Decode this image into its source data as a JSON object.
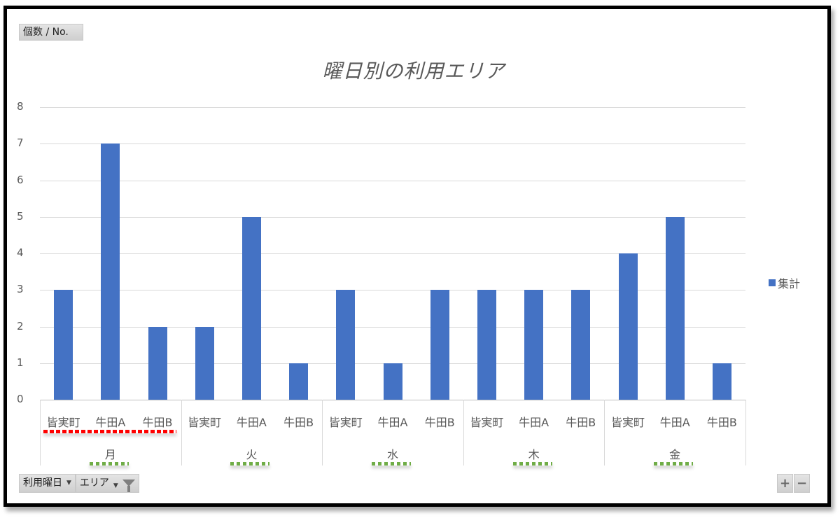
{
  "value_field_button": "個数 / No.",
  "chart_title": "曜日別の利用エリア",
  "legend": {
    "label": "集計",
    "color": "#4472c4"
  },
  "y_axis": {
    "ticks": [
      "0",
      "1",
      "2",
      "3",
      "4",
      "5",
      "6",
      "7",
      "8"
    ]
  },
  "categories": [
    {
      "day": "月",
      "areas": [
        "皆実町",
        "牛田A",
        "牛田B"
      ],
      "values": [
        3,
        7,
        2
      ]
    },
    {
      "day": "火",
      "areas": [
        "皆実町",
        "牛田A",
        "牛田B"
      ],
      "values": [
        2,
        5,
        1
      ]
    },
    {
      "day": "水",
      "areas": [
        "皆実町",
        "牛田A",
        "牛田B"
      ],
      "values": [
        3,
        1,
        3
      ]
    },
    {
      "day": "木",
      "areas": [
        "皆実町",
        "牛田A",
        "牛田B"
      ],
      "values": [
        3,
        3,
        3
      ]
    },
    {
      "day": "金",
      "areas": [
        "皆実町",
        "牛田A",
        "牛田B"
      ],
      "values": [
        4,
        5,
        1
      ]
    }
  ],
  "field_buttons": {
    "axis_field_1": "利用曜日",
    "axis_field_2": "エリア"
  },
  "zoom_controls": {
    "expand": "+",
    "collapse": "−"
  },
  "chart_data": {
    "type": "bar",
    "title": "曜日別の利用エリア",
    "xlabel": "",
    "ylabel": "",
    "ylim": [
      0,
      8
    ],
    "grid": true,
    "legend_position": "right",
    "categories": [
      "月 / 皆実町",
      "月 / 牛田A",
      "月 / 牛田B",
      "火 / 皆実町",
      "火 / 牛田A",
      "火 / 牛田B",
      "水 / 皆実町",
      "水 / 牛田A",
      "水 / 牛田B",
      "木 / 皆実町",
      "木 / 牛田A",
      "木 / 牛田B",
      "金 / 皆実町",
      "金 / 牛田A",
      "金 / 牛田B"
    ],
    "series": [
      {
        "name": "集計",
        "values": [
          3,
          7,
          2,
          2,
          5,
          1,
          3,
          1,
          3,
          3,
          3,
          3,
          4,
          5,
          1
        ]
      }
    ]
  }
}
